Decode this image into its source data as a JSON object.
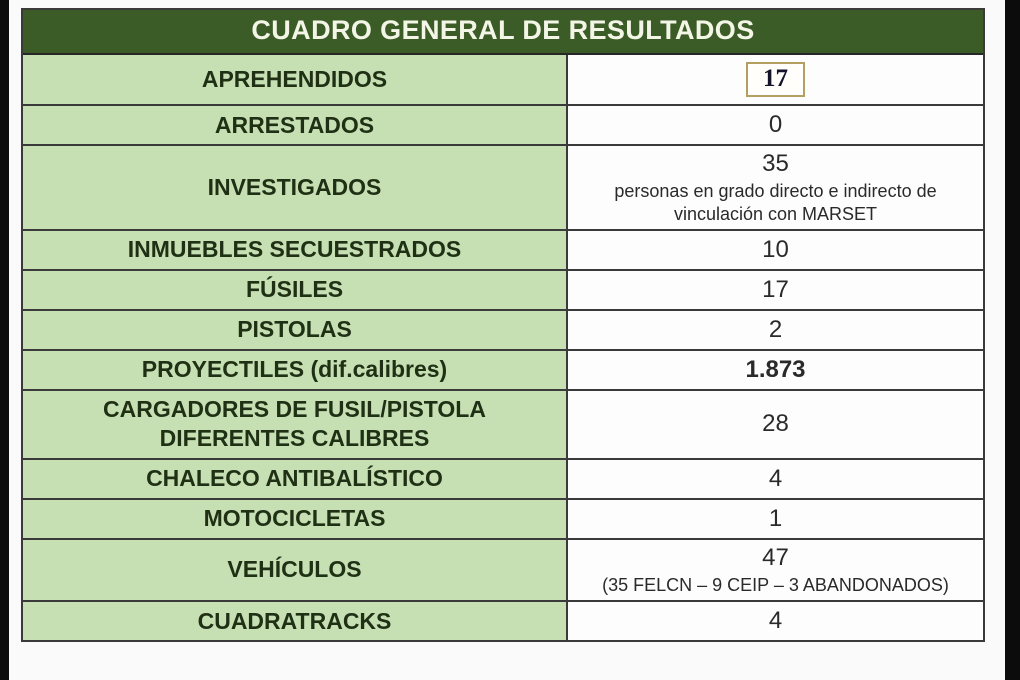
{
  "frame": {
    "left_bar_color": "#0c0c0c",
    "right_bar_color": "#0c0c0c"
  },
  "table": {
    "title": "CUADRO GENERAL DE RESULTADOS",
    "colors": {
      "header_bg": "#3b5c26",
      "header_text": "#f3f6e7",
      "label_bg": "#c6e0b4",
      "label_text": "#1f3014",
      "value_bg": "#fdfdfd",
      "value_text": "#2a2a2a",
      "border": "#3a3a3a",
      "highlight_box_border": "#b59e62"
    },
    "rows": [
      {
        "label": "APREHENDIDOS",
        "value": "17",
        "boxed": true
      },
      {
        "label": "ARRESTADOS",
        "value": "0"
      },
      {
        "label": "INVESTIGADOS",
        "value": "35",
        "note": "personas en grado directo e indirecto de vinculación con MARSET"
      },
      {
        "label": "INMUEBLES SECUESTRADOS",
        "value": "10"
      },
      {
        "label": "FÚSILES",
        "value": "17"
      },
      {
        "label": "PISTOLAS",
        "value": "2"
      },
      {
        "label": "PROYECTILES (dif.calibres)",
        "value": "1.873",
        "bold": true
      },
      {
        "label": "CARGADORES DE FUSIL/PISTOLA DIFERENTES CALIBRES",
        "value": "28"
      },
      {
        "label": "CHALECO ANTIBALÍSTICO",
        "value": "4"
      },
      {
        "label": "MOTOCICLETAS",
        "value": "1"
      },
      {
        "label": "VEHÍCULOS",
        "value": "47",
        "note": "(35 FELCN – 9 CEIP – 3 ABANDONADOS)"
      },
      {
        "label": "CUADRATRACKS",
        "value": "4"
      }
    ]
  }
}
